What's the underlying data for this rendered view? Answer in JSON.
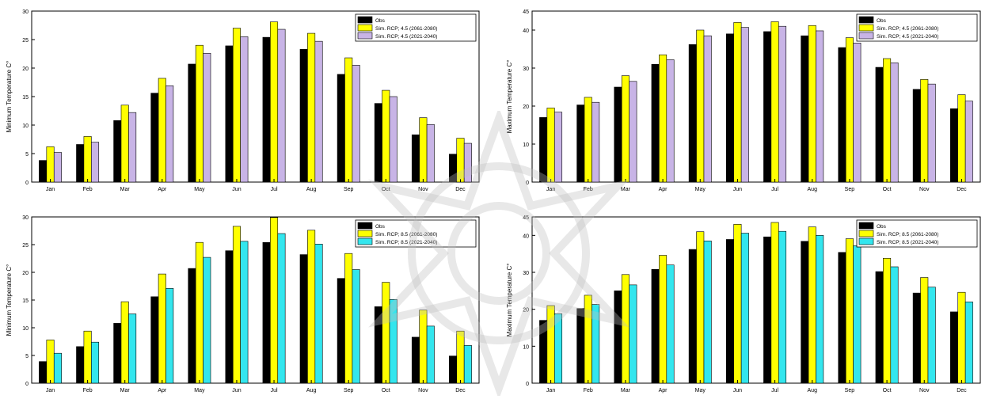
{
  "colors": {
    "obs": "#000000",
    "yellow": "#ffff00",
    "purple": "#c8b4e6",
    "cyan": "#33e6ee",
    "axis": "#000000"
  },
  "chart_data": [
    {
      "type": "bar",
      "ylabel": "Minimum Temperature C°",
      "ylim": [
        0,
        30
      ],
      "yticks": [
        0,
        5,
        10,
        15,
        20,
        25,
        30
      ],
      "grid": false,
      "legend_position": "top-right",
      "categories": [
        "Jan",
        "Feb",
        "Mar",
        "Apr",
        "May",
        "Jun",
        "Jul",
        "Aug",
        "Sep",
        "Oct",
        "Nov",
        "Dec"
      ],
      "series": [
        {
          "name": "Obs",
          "color": "obs",
          "values": [
            3.8,
            6.6,
            10.8,
            15.6,
            20.7,
            23.9,
            25.4,
            23.3,
            18.9,
            13.8,
            8.3,
            4.9
          ]
        },
        {
          "name": "Sim. RCP; 4.5 (2061-2080)",
          "color": "yellow",
          "values": [
            6.2,
            8.0,
            13.5,
            18.2,
            24.0,
            27.0,
            28.1,
            26.1,
            21.8,
            16.1,
            11.3,
            7.7
          ]
        },
        {
          "name": "Sim. RCP; 4.5 (2021-2040)",
          "color": "purple",
          "values": [
            5.2,
            7.0,
            12.2,
            16.9,
            22.6,
            25.5,
            26.8,
            24.7,
            20.5,
            15.0,
            10.1,
            6.8
          ]
        }
      ]
    },
    {
      "type": "bar",
      "ylabel": "Maximum Temperature C°",
      "ylim": [
        0,
        45
      ],
      "yticks": [
        0,
        10,
        20,
        30,
        40,
        45
      ],
      "grid": false,
      "legend_position": "top-right",
      "categories": [
        "Jan",
        "Feb",
        "Mar",
        "Apr",
        "May",
        "Jun",
        "Jul",
        "Aug",
        "Sep",
        "Oct",
        "Nov",
        "Dec"
      ],
      "series": [
        {
          "name": "Obs",
          "color": "obs",
          "values": [
            17.0,
            20.3,
            25.0,
            31.0,
            36.2,
            39.0,
            39.6,
            38.5,
            35.4,
            30.2,
            24.4,
            19.3
          ]
        },
        {
          "name": "Sim. RCP; 4.5 (2061-2080)",
          "color": "yellow",
          "values": [
            19.5,
            22.3,
            28.0,
            33.5,
            40.0,
            42.0,
            42.2,
            41.2,
            38.0,
            32.5,
            27.0,
            23.0
          ]
        },
        {
          "name": "Sim. RCP; 4.5 (2021-2040)",
          "color": "purple",
          "values": [
            18.4,
            21.0,
            26.5,
            32.2,
            38.5,
            40.7,
            41.0,
            39.8,
            36.6,
            31.4,
            25.8,
            21.3
          ]
        }
      ]
    },
    {
      "type": "bar",
      "ylabel": "Minimum Temperature C°",
      "ylim": [
        0,
        30
      ],
      "yticks": [
        0,
        5,
        10,
        15,
        20,
        25,
        30
      ],
      "grid": false,
      "legend_position": "top-right",
      "categories": [
        "Jan",
        "Feb",
        "Mar",
        "Apr",
        "May",
        "Jun",
        "Jul",
        "Aug",
        "Sep",
        "Oct",
        "Nov",
        "Dec"
      ],
      "series": [
        {
          "name": "Obs",
          "color": "obs",
          "values": [
            3.9,
            6.6,
            10.8,
            15.6,
            20.7,
            23.9,
            25.4,
            23.2,
            18.9,
            13.8,
            8.3,
            4.9
          ]
        },
        {
          "name": "Sim. RCP; 8.5 (2061-2080)",
          "color": "yellow",
          "values": [
            7.8,
            9.4,
            14.7,
            19.7,
            25.4,
            28.3,
            29.9,
            27.6,
            23.4,
            18.2,
            13.2,
            9.4
          ]
        },
        {
          "name": "Sim. RCP; 8.5 (2021-2040)",
          "color": "cyan",
          "values": [
            5.4,
            7.4,
            12.5,
            17.1,
            22.7,
            25.6,
            27.0,
            25.1,
            20.5,
            15.1,
            10.3,
            6.8
          ]
        }
      ]
    },
    {
      "type": "bar",
      "ylabel": "Maximum Temperature C°",
      "ylim": [
        0,
        45
      ],
      "yticks": [
        0,
        10,
        20,
        30,
        40,
        45
      ],
      "grid": false,
      "legend_position": "top-right",
      "categories": [
        "Jan",
        "Feb",
        "Mar",
        "Apr",
        "May",
        "Jun",
        "Jul",
        "Aug",
        "Sep",
        "Oct",
        "Nov",
        "Dec"
      ],
      "series": [
        {
          "name": "Obs",
          "color": "obs",
          "values": [
            17.0,
            20.2,
            25.0,
            30.8,
            36.2,
            38.9,
            39.6,
            38.4,
            35.4,
            30.2,
            24.4,
            19.3
          ]
        },
        {
          "name": "Sim. RCP; 8.5 (2061-2080)",
          "color": "yellow",
          "values": [
            21.0,
            23.8,
            29.4,
            34.6,
            41.0,
            43.0,
            43.5,
            42.3,
            39.1,
            33.8,
            28.6,
            24.6
          ]
        },
        {
          "name": "Sim. RCP; 8.5 (2021-2040)",
          "color": "cyan",
          "values": [
            18.8,
            21.3,
            26.6,
            32.0,
            38.5,
            40.6,
            41.1,
            40.0,
            37.2,
            31.5,
            26.0,
            22.0
          ]
        }
      ]
    }
  ]
}
